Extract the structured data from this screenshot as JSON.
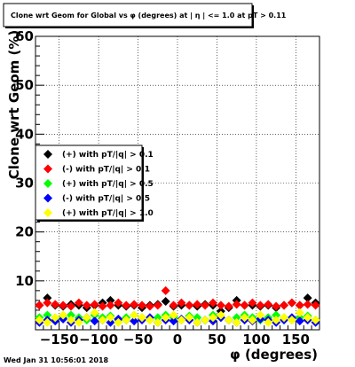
{
  "chart_data": {
    "type": "scatter",
    "title": "Clone wrt Geom for Global vs φ (degrees) at | η | <= 1.0 at pT > 0.11",
    "xlabel": "φ (degrees)",
    "ylabel": "Clone wrt Geom (%)",
    "xlim": [
      -180,
      180
    ],
    "ylim": [
      0,
      60
    ],
    "x_ticks": [
      -150,
      -100,
      -50,
      0,
      50,
      100,
      150
    ],
    "x_tick_labels": [
      "−150",
      "−100",
      "−50",
      "0",
      "50",
      "100",
      "150"
    ],
    "y_ticks": [
      10,
      20,
      30,
      40,
      50,
      60
    ],
    "y_tick_labels": [
      "10",
      "20",
      "30",
      "40",
      "50",
      "60"
    ],
    "grid": true,
    "legend_position": "left-middle",
    "x": [
      -175,
      -165,
      -155,
      -145,
      -135,
      -125,
      -115,
      -105,
      -95,
      -85,
      -75,
      -65,
      -55,
      -45,
      -35,
      -25,
      -15,
      -5,
      5,
      15,
      25,
      35,
      45,
      55,
      65,
      75,
      85,
      95,
      105,
      115,
      125,
      135,
      145,
      155,
      165,
      175
    ],
    "series": [
      {
        "name": "(+) with pT/|q| > 0.1",
        "color": "#000000",
        "values": [
          5.0,
          6.5,
          5.0,
          4.8,
          5.2,
          5.0,
          4.5,
          5.0,
          5.5,
          6.0,
          5.0,
          4.8,
          5.0,
          4.5,
          5.0,
          5.2,
          5.8,
          4.8,
          5.0,
          5.0,
          4.8,
          5.2,
          5.0,
          3.8,
          4.5,
          6.0,
          5.0,
          5.0,
          4.8,
          5.0,
          4.5,
          5.0,
          5.5,
          5.0,
          6.5,
          5.5
        ]
      },
      {
        "name": "(-) with pT/|q| > 0.1",
        "color": "#ff0000",
        "values": [
          5.0,
          5.5,
          5.2,
          5.0,
          4.8,
          5.5,
          5.0,
          5.2,
          4.8,
          5.0,
          5.5,
          5.0,
          5.2,
          5.0,
          4.8,
          5.0,
          8.0,
          5.0,
          5.5,
          5.0,
          5.2,
          5.0,
          5.5,
          5.0,
          4.8,
          5.2,
          5.0,
          5.5,
          5.0,
          5.2,
          4.8,
          5.0,
          5.5,
          5.0,
          5.2,
          5.0
        ]
      },
      {
        "name": "(+) with pT/|q| > 0.5",
        "color": "#00ff00",
        "values": [
          2.5,
          3.0,
          2.0,
          2.5,
          3.0,
          2.5,
          2.0,
          3.0,
          2.5,
          2.8,
          2.0,
          2.5,
          3.0,
          2.5,
          2.0,
          2.5,
          3.0,
          2.5,
          2.0,
          2.8,
          2.5,
          2.0,
          3.0,
          2.5,
          2.0,
          2.5,
          3.0,
          2.5,
          2.0,
          2.5,
          3.0,
          2.5,
          2.0,
          2.5,
          2.8,
          2.0
        ]
      },
      {
        "name": "(-) with pT/|q| > 0.5",
        "color": "#0000ff",
        "values": [
          1.5,
          2.0,
          1.8,
          2.2,
          1.5,
          2.0,
          2.5,
          1.8,
          2.0,
          1.5,
          2.2,
          2.0,
          1.8,
          2.0,
          2.5,
          1.5,
          2.0,
          1.8,
          2.2,
          2.0,
          1.5,
          2.0,
          1.8,
          2.5,
          2.0,
          1.5,
          2.0,
          1.8,
          2.2,
          2.0,
          1.5,
          2.0,
          2.5,
          1.8,
          2.0,
          1.5
        ]
      },
      {
        "name": "(+) with pT/|q| > 1.0",
        "color": "#ffff00",
        "values": [
          2.0,
          1.5,
          2.5,
          3.0,
          2.0,
          1.5,
          2.5,
          3.5,
          2.0,
          2.5,
          1.5,
          2.0,
          3.0,
          2.5,
          2.0,
          1.5,
          2.5,
          3.0,
          2.0,
          2.5,
          1.5,
          2.0,
          2.5,
          3.0,
          2.0,
          1.5,
          2.5,
          2.0,
          3.0,
          1.5,
          2.0,
          2.5,
          2.0,
          3.5,
          2.5,
          2.0
        ]
      }
    ]
  },
  "footer": {
    "timestamp": "Wed Jan 31 10:56:01 2018"
  }
}
